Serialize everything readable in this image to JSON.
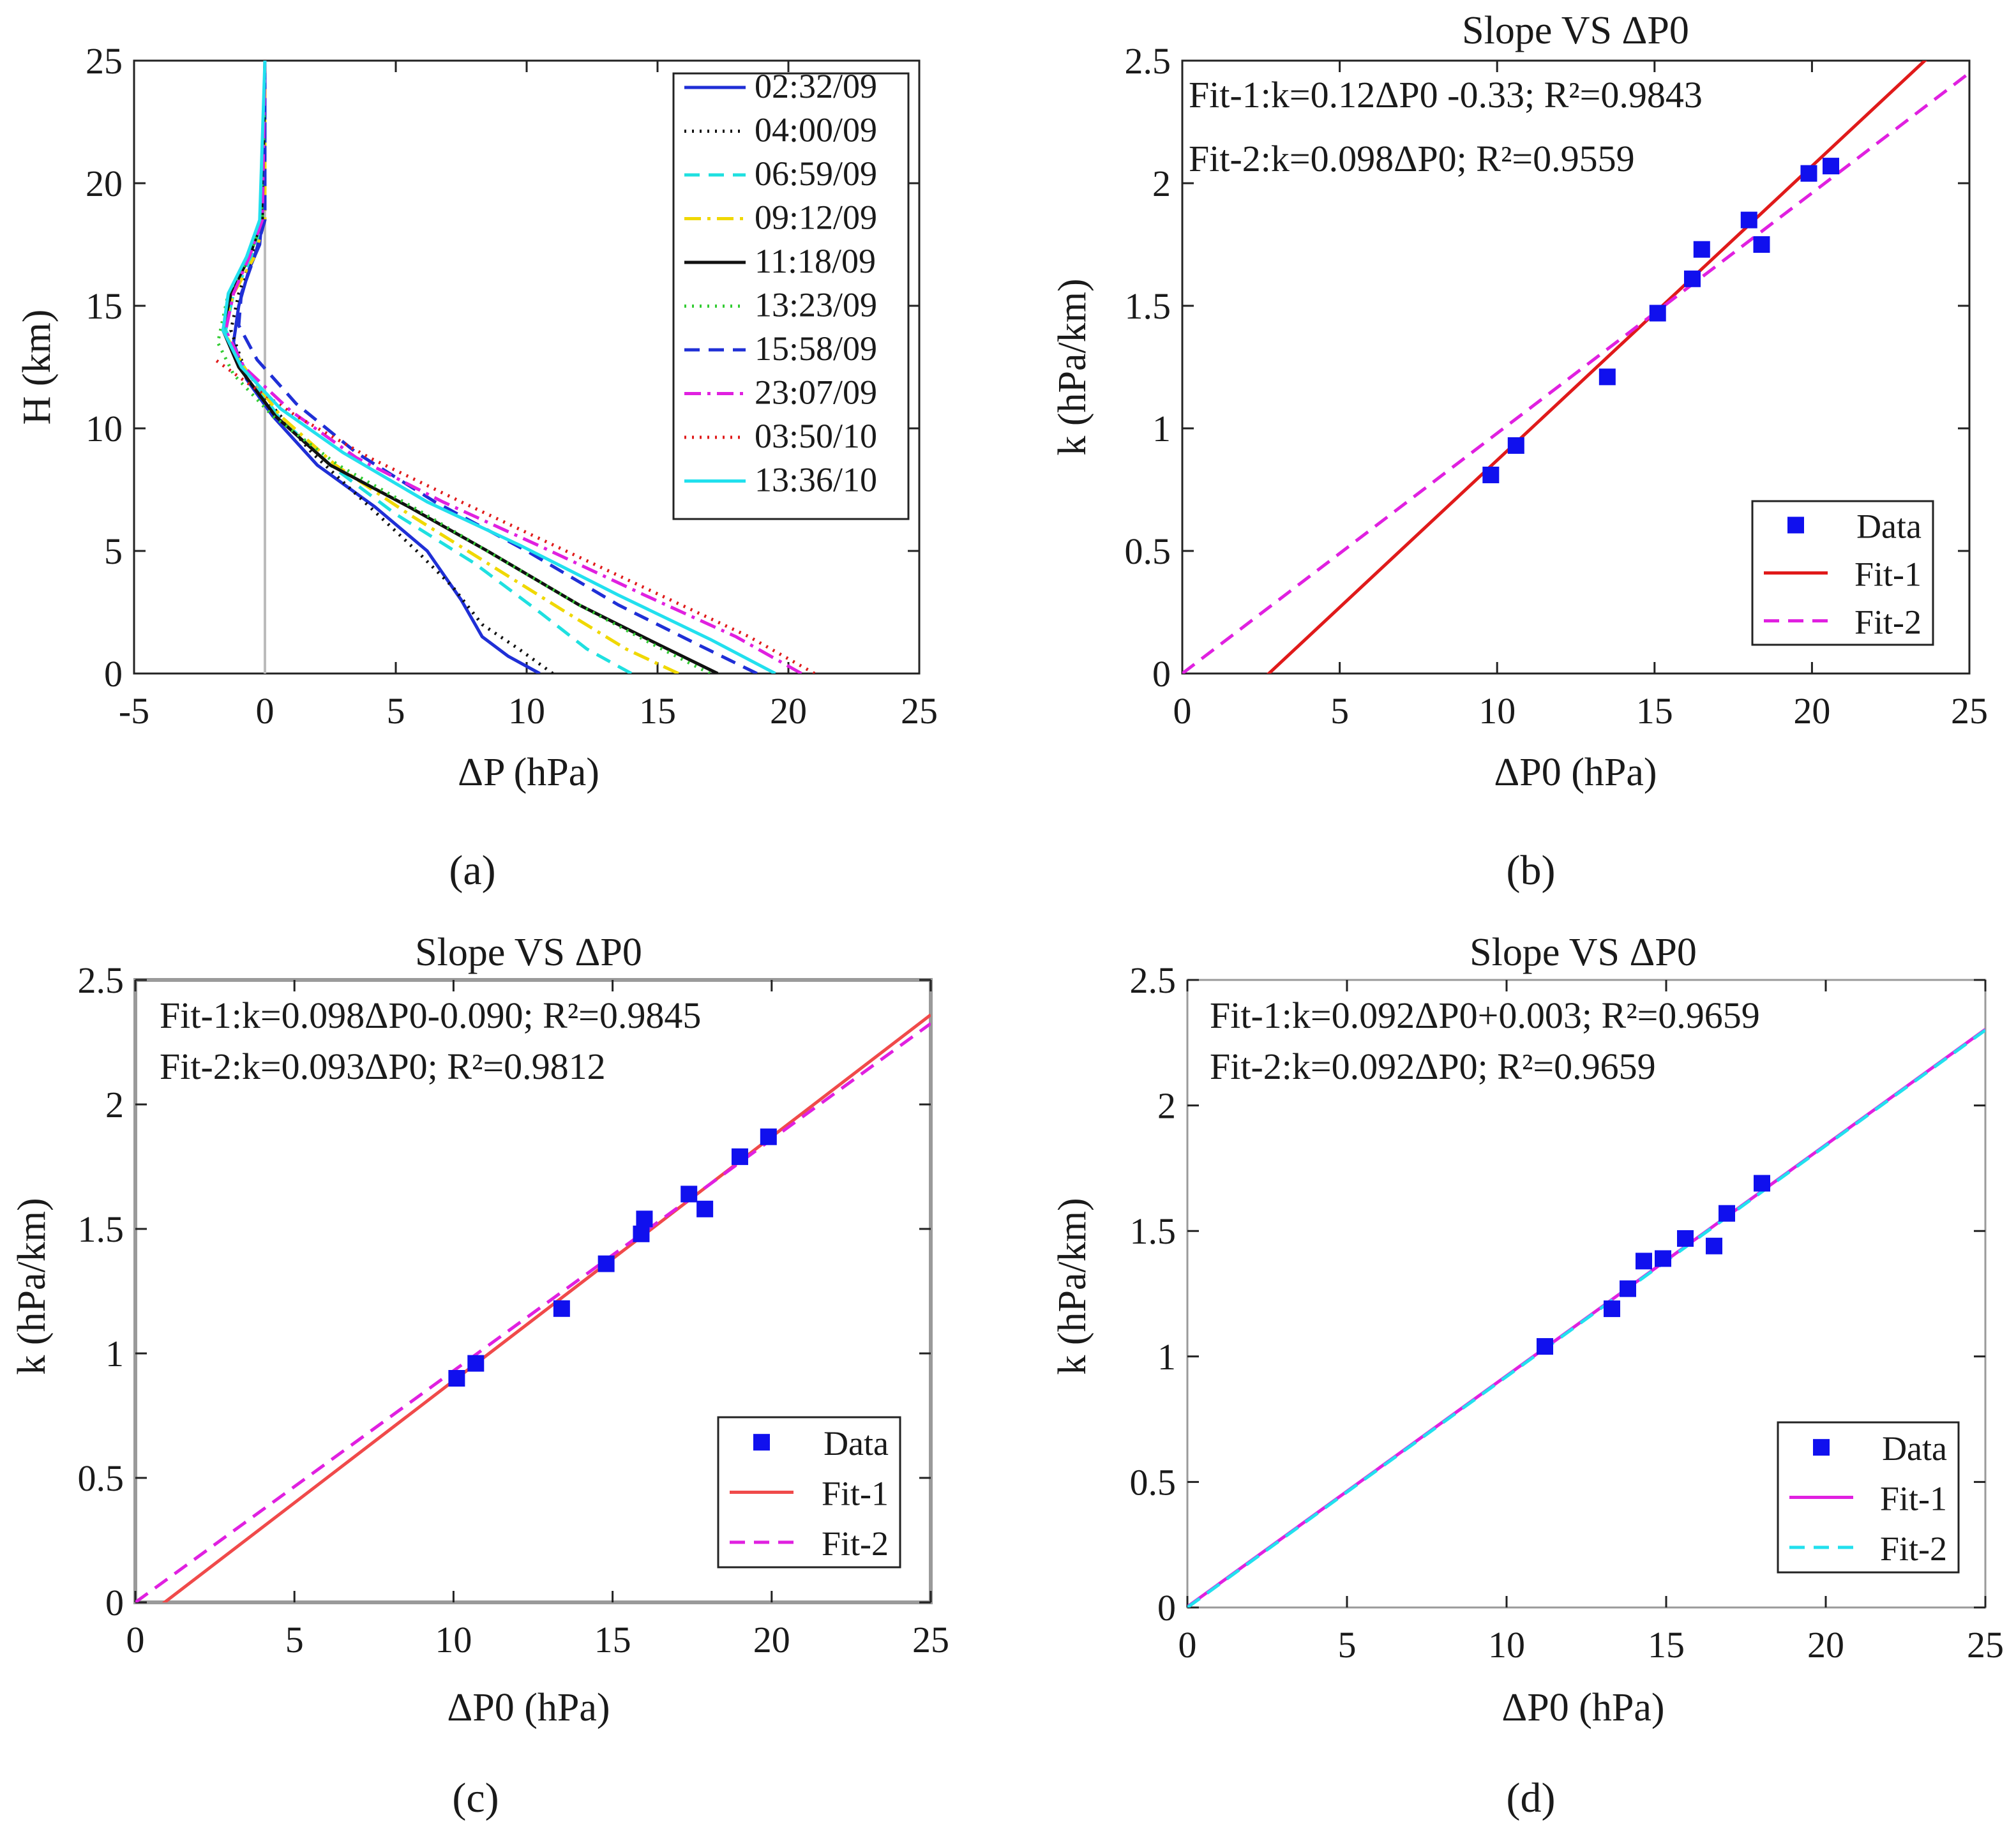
{
  "chart_data": [
    {
      "panel": "a",
      "type": "line",
      "caption": "(a)",
      "xlabel": "ΔP (hPa)",
      "ylabel": "H (km)",
      "xlim": [
        -5,
        25
      ],
      "ylim": [
        0,
        25
      ],
      "xticks": [
        -5,
        0,
        5,
        10,
        15,
        20,
        25
      ],
      "yticks": [
        0,
        5,
        10,
        15,
        20,
        25
      ],
      "grid": false,
      "legend_position": "top-right",
      "reference_line": {
        "x": 0,
        "color": "#bbbbbb"
      },
      "series": [
        {
          "name": "02:32/09",
          "color": "#1f2fd6",
          "dash": "solid",
          "points": [
            [
              10.5,
              0
            ],
            [
              9.3,
              0.7
            ],
            [
              8.3,
              1.5
            ],
            [
              7.5,
              3.0
            ],
            [
              6.2,
              5.0
            ],
            [
              4.2,
              6.8
            ],
            [
              2.0,
              8.5
            ],
            [
              0.3,
              10.5
            ],
            [
              -0.7,
              12.0
            ],
            [
              -1.2,
              13.5
            ],
            [
              -1.0,
              15.0
            ],
            [
              -0.6,
              16.5
            ],
            [
              -0.2,
              17.5
            ],
            [
              0,
              20
            ],
            [
              0,
              25
            ]
          ]
        },
        {
          "name": "04:00/09",
          "color": "#111111",
          "dash": "dot",
          "points": [
            [
              11.0,
              0
            ],
            [
              9.7,
              1.0
            ],
            [
              8.3,
              2.0
            ],
            [
              7.2,
              3.5
            ],
            [
              5.8,
              5.0
            ],
            [
              3.8,
              7.0
            ],
            [
              1.8,
              9.0
            ],
            [
              0.2,
              11.0
            ],
            [
              -0.8,
              12.5
            ],
            [
              -1.3,
              14.0
            ],
            [
              -1.0,
              15.5
            ],
            [
              -0.5,
              17.0
            ],
            [
              -0.1,
              18.5
            ],
            [
              0,
              25
            ]
          ]
        },
        {
          "name": "06:59/09",
          "color": "#1fe0e0",
          "dash": "dash",
          "points": [
            [
              14.0,
              0
            ],
            [
              12.3,
              1.0
            ],
            [
              10.5,
              2.5
            ],
            [
              8.0,
              4.5
            ],
            [
              5.0,
              6.5
            ],
            [
              2.5,
              8.5
            ],
            [
              0.5,
              10.5
            ],
            [
              -0.8,
              12.5
            ],
            [
              -1.5,
              14.0
            ],
            [
              -1.2,
              15.5
            ],
            [
              -0.5,
              17.0
            ],
            [
              -0.1,
              18.5
            ],
            [
              0,
              25
            ]
          ]
        },
        {
          "name": "09:12/09",
          "color": "#f0d800",
          "dash": "dashdot",
          "points": [
            [
              15.8,
              0
            ],
            [
              13.8,
              1.0
            ],
            [
              11.5,
              2.5
            ],
            [
              8.5,
              4.5
            ],
            [
              5.5,
              6.5
            ],
            [
              2.7,
              8.5
            ],
            [
              0.6,
              10.5
            ],
            [
              -0.8,
              12.5
            ],
            [
              -1.6,
              14.0
            ],
            [
              -1.2,
              15.5
            ],
            [
              -0.4,
              17.0
            ],
            [
              0,
              18.5
            ],
            [
              0,
              25
            ]
          ]
        },
        {
          "name": "11:18/09",
          "color": "#111111",
          "dash": "solid",
          "points": [
            [
              17.3,
              0
            ],
            [
              15.0,
              1.2
            ],
            [
              12.0,
              2.8
            ],
            [
              8.5,
              5.0
            ],
            [
              5.5,
              6.8
            ],
            [
              2.5,
              8.5
            ],
            [
              0.4,
              10.5
            ],
            [
              -1.0,
              12.5
            ],
            [
              -1.6,
              14.0
            ],
            [
              -1.3,
              15.5
            ],
            [
              -0.6,
              17.0
            ],
            [
              -0.1,
              18.5
            ],
            [
              0,
              25
            ]
          ]
        },
        {
          "name": "13:23/09",
          "color": "#33cc33",
          "dash": "dot",
          "points": [
            [
              17.0,
              0
            ],
            [
              14.8,
              1.2
            ],
            [
              12.0,
              2.8
            ],
            [
              8.8,
              4.8
            ],
            [
              5.8,
              6.7
            ],
            [
              2.8,
              8.5
            ],
            [
              0.3,
              10.5
            ],
            [
              -1.2,
              12.2
            ],
            [
              -1.8,
              13.5
            ],
            [
              -1.4,
              15.5
            ],
            [
              -0.6,
              17.0
            ],
            [
              -0.1,
              18.5
            ],
            [
              0,
              25
            ]
          ]
        },
        {
          "name": "15:58/09",
          "color": "#1f2fd6",
          "dash": "dash",
          "points": [
            [
              18.8,
              0
            ],
            [
              16.5,
              1.2
            ],
            [
              13.5,
              2.8
            ],
            [
              10.0,
              5.0
            ],
            [
              6.5,
              7.0
            ],
            [
              3.5,
              9.0
            ],
            [
              1.2,
              11.0
            ],
            [
              -0.3,
              12.8
            ],
            [
              -1.0,
              14.2
            ],
            [
              -0.9,
              15.5
            ],
            [
              -0.4,
              17.0
            ],
            [
              0,
              18.5
            ],
            [
              0,
              25
            ]
          ]
        },
        {
          "name": "23:07/09",
          "color": "#e020e0",
          "dash": "dashdot",
          "points": [
            [
              20.5,
              0
            ],
            [
              18.0,
              1.5
            ],
            [
              14.5,
              3.2
            ],
            [
              10.5,
              5.2
            ],
            [
              6.8,
              7.0
            ],
            [
              3.5,
              8.8
            ],
            [
              1.0,
              10.7
            ],
            [
              -0.8,
              12.5
            ],
            [
              -1.5,
              14.0
            ],
            [
              -1.2,
              15.5
            ],
            [
              -0.6,
              17.0
            ],
            [
              -0.1,
              18.5
            ],
            [
              0,
              25
            ]
          ]
        },
        {
          "name": "03:50/10",
          "color": "#e01a1a",
          "dash": "dot",
          "points": [
            [
              21.0,
              0
            ],
            [
              18.5,
              1.5
            ],
            [
              15.5,
              3.0
            ],
            [
              11.5,
              5.0
            ],
            [
              7.5,
              7.0
            ],
            [
              4.0,
              8.8
            ],
            [
              1.2,
              10.5
            ],
            [
              -0.6,
              11.8
            ],
            [
              -1.9,
              12.8
            ]
          ]
        },
        {
          "name": "13:36/10",
          "color": "#22e0ee",
          "dash": "solid",
          "points": [
            [
              19.5,
              0
            ],
            [
              17.0,
              1.4
            ],
            [
              13.5,
              3.2
            ],
            [
              9.8,
              5.2
            ],
            [
              6.2,
              7.0
            ],
            [
              3.0,
              9.0
            ],
            [
              0.6,
              10.8
            ],
            [
              -0.9,
              12.5
            ],
            [
              -1.6,
              14.0
            ],
            [
              -1.4,
              15.5
            ],
            [
              -0.7,
              17.0
            ],
            [
              -0.2,
              18.5
            ],
            [
              0,
              25
            ]
          ]
        }
      ]
    },
    {
      "panel": "b",
      "type": "scatter",
      "caption": "(b)",
      "title": "Slope VS ΔP0",
      "xlabel": "ΔP0 (hPa)",
      "ylabel": "k (hPa/km)",
      "xlim": [
        0,
        25
      ],
      "ylim": [
        0,
        2.5
      ],
      "xticks": [
        0,
        5,
        10,
        15,
        20,
        25
      ],
      "yticks": [
        0,
        0.5,
        1,
        1.5,
        2,
        2.5
      ],
      "ytick_labels": [
        "0",
        "0.5",
        "1",
        "1.5",
        "2",
        "2.5"
      ],
      "annotations": [
        "Fit-1:k=0.12ΔP0 -0.33;  R²=0.9843",
        "Fit-2:k=0.098ΔP0;  R²=0.9559"
      ],
      "legend_position": "bottom-right",
      "legend": [
        "Data",
        "Fit-1",
        "Fit-2"
      ],
      "data": {
        "x": [
          9.8,
          10.6,
          13.5,
          15.1,
          16.2,
          16.5,
          18.0,
          18.4,
          19.9,
          20.6
        ],
        "y": [
          0.81,
          0.93,
          1.21,
          1.47,
          1.61,
          1.73,
          1.85,
          1.75,
          2.04,
          2.07
        ],
        "color": "#1010ee"
      },
      "fits": [
        {
          "name": "Fit-1",
          "slope": 0.12,
          "intercept": -0.33,
          "color": "#e01a1a",
          "dash": "solid"
        },
        {
          "name": "Fit-2",
          "slope": 0.098,
          "intercept": 0,
          "color": "#e020e0",
          "dash": "dash"
        }
      ]
    },
    {
      "panel": "c",
      "type": "scatter",
      "caption": "(c)",
      "title": "Slope VS ΔP0",
      "xlabel": "ΔP0 (hPa)",
      "ylabel": "k (hPa/km)",
      "xlim": [
        0,
        25
      ],
      "ylim": [
        0,
        2.5
      ],
      "xticks": [
        0,
        5,
        10,
        15,
        20,
        25
      ],
      "yticks": [
        0,
        0.5,
        1,
        1.5,
        2,
        2.5
      ],
      "ytick_labels": [
        "0",
        "0.5",
        "1",
        "1.5",
        "2",
        "2.5"
      ],
      "annotations": [
        "Fit-1:k=0.098ΔP0-0.090;  R²=0.9845",
        "Fit-2:k=0.093ΔP0;  R²=0.9812"
      ],
      "legend_position": "bottom-right",
      "legend": [
        "Data",
        "Fit-1",
        "Fit-2"
      ],
      "data": {
        "x": [
          10.1,
          10.7,
          13.4,
          14.8,
          15.9,
          16.0,
          17.4,
          17.9,
          19.0,
          19.9
        ],
        "y": [
          0.9,
          0.96,
          1.18,
          1.36,
          1.48,
          1.54,
          1.64,
          1.58,
          1.79,
          1.87
        ],
        "color": "#1010ee"
      },
      "fits": [
        {
          "name": "Fit-1",
          "slope": 0.098,
          "intercept": -0.09,
          "color": "#f04a4a",
          "dash": "solid"
        },
        {
          "name": "Fit-2",
          "slope": 0.093,
          "intercept": 0,
          "color": "#e020e0",
          "dash": "dash"
        }
      ]
    },
    {
      "panel": "d",
      "type": "scatter",
      "caption": "(d)",
      "title": "Slope VS ΔP0",
      "xlabel": "ΔP0 (hPa)",
      "ylabel": "k (hPa/km)",
      "xlim": [
        0,
        25
      ],
      "ylim": [
        0,
        2.5
      ],
      "xticks": [
        0,
        5,
        10,
        15,
        20,
        25
      ],
      "yticks": [
        0,
        0.5,
        1,
        1.5,
        2,
        2.5
      ],
      "ytick_labels": [
        "0",
        "0.5",
        "1",
        "1.5",
        "2",
        "2.5"
      ],
      "annotations": [
        "Fit-1:k=0.092ΔP0+0.003;  R²=0.9659",
        "Fit-2:k=0.092ΔP0;  R²=0.9659"
      ],
      "legend_position": "bottom-right",
      "legend": [
        "Data",
        "Fit-1",
        "Fit-2"
      ],
      "data": {
        "x": [
          11.2,
          13.3,
          13.8,
          14.3,
          14.9,
          15.6,
          16.5,
          16.9,
          18.0
        ],
        "y": [
          1.04,
          1.19,
          1.27,
          1.38,
          1.39,
          1.47,
          1.44,
          1.57,
          1.69
        ],
        "color": "#1010ee"
      },
      "fits": [
        {
          "name": "Fit-1",
          "slope": 0.092,
          "intercept": 0.003,
          "color": "#e020e0",
          "dash": "solid"
        },
        {
          "name": "Fit-2",
          "slope": 0.092,
          "intercept": 0,
          "color": "#22e0ee",
          "dash": "dash"
        }
      ]
    }
  ]
}
